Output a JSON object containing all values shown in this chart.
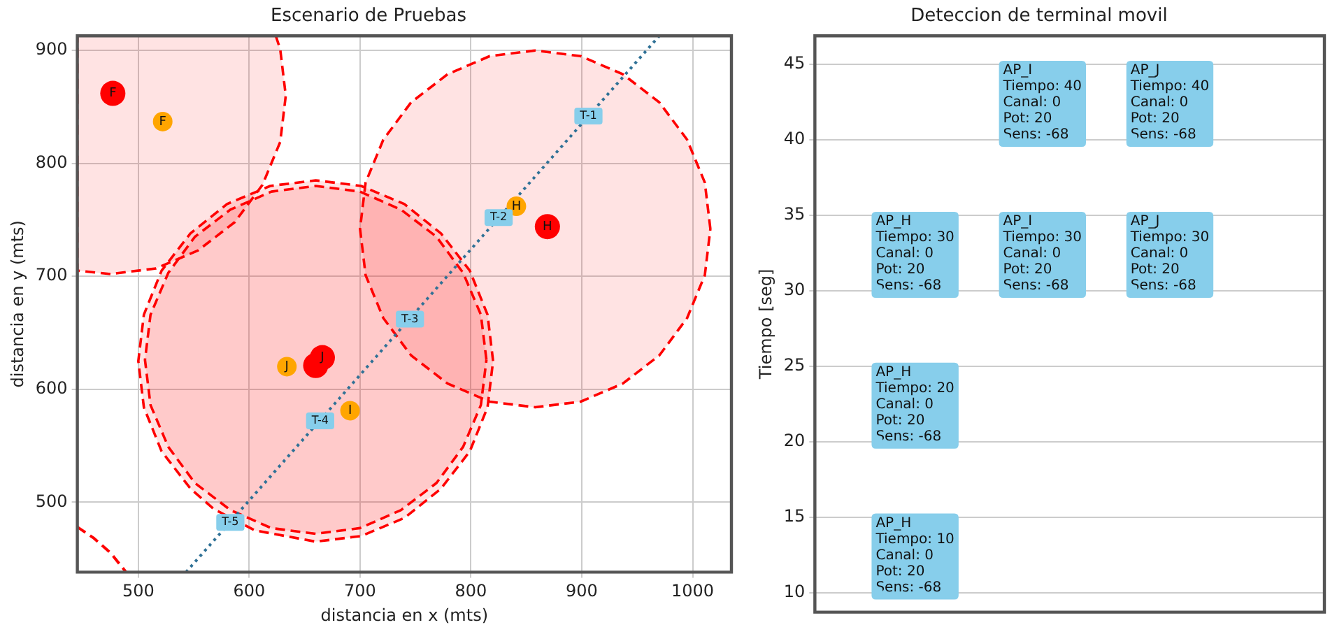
{
  "chart_data": [
    {
      "type": "scatter",
      "title": "Escenario de Pruebas",
      "xlabel": "distancia en x (mts)",
      "ylabel": "distancia en y (mts)",
      "xlim": [
        445,
        1035
      ],
      "ylim": [
        438,
        913
      ],
      "xticks": [
        500,
        600,
        700,
        800,
        900,
        1000
      ],
      "yticks": [
        500,
        600,
        700,
        800,
        900
      ],
      "grid": true,
      "legend": false,
      "marker": "circle",
      "series": [
        {
          "type": "area",
          "line_style": "dashed",
          "marker": "none",
          "color": "#ff0000",
          "x": [
            624,
            628,
            633,
            628,
            612,
            587,
            554,
            516,
            475,
            445,
            445,
            624
          ],
          "values": [
            913,
            901,
            860,
            819,
            781,
            748,
            723,
            707,
            702,
            705,
            913,
            913
          ]
        },
        {
          "type": "area",
          "line_style": "dashed",
          "marker": "none",
          "color": "#ff0000",
          "x": [
            1016,
            1011,
            995,
            970,
            937,
            899,
            858,
            817,
            779,
            746,
            721,
            705,
            700,
            705,
            721,
            746,
            779,
            817,
            858,
            899,
            937,
            970,
            995,
            1011,
            1016
          ],
          "values": [
            742,
            783,
            821,
            854,
            879,
            895,
            900,
            895,
            879,
            854,
            821,
            783,
            742,
            701,
            663,
            630,
            605,
            589,
            584,
            589,
            605,
            630,
            663,
            701,
            742
          ]
        },
        {
          "type": "area",
          "line_style": "dashed",
          "marker": "none",
          "color": "#ff0000",
          "x": [
            820,
            815,
            799,
            773,
            740,
            701,
            660,
            619,
            580,
            547,
            521,
            505,
            500,
            505,
            521,
            547,
            568,
            605,
            660,
            701,
            740,
            773,
            799,
            815,
            820
          ],
          "values": [
            625,
            666,
            705,
            738,
            764,
            780,
            785,
            780,
            764,
            738,
            705,
            666,
            625,
            584,
            545,
            512,
            494,
            475,
            465,
            470,
            486,
            512,
            545,
            584,
            625
          ]
        },
        {
          "type": "area",
          "line_style": "dashed",
          "marker": "none",
          "color": "#ff0000",
          "x": [
            814,
            809,
            793,
            769,
            737,
            700,
            660,
            620,
            583,
            551,
            527,
            511,
            506,
            511,
            527,
            551,
            583,
            620,
            660,
            700,
            737,
            769,
            793,
            809,
            814
          ],
          "values": [
            626,
            666,
            703,
            735,
            759,
            775,
            780,
            775,
            759,
            735,
            703,
            666,
            626,
            586,
            549,
            517,
            493,
            477,
            472,
            477,
            493,
            517,
            549,
            586,
            626
          ]
        },
        {
          "type": "line",
          "line_style": "dashed",
          "marker": "none",
          "color": "#ff0000",
          "x": [
            445,
            460,
            475,
            489
          ],
          "values": [
            478,
            468,
            455,
            438
          ]
        },
        {
          "type": "line",
          "line_style": "dotted",
          "marker": "none",
          "color": "#2f7196",
          "x": [
            543,
            970
          ],
          "values": [
            438,
            913
          ]
        },
        {
          "color": "#ff0000",
          "x": [
            477,
            869,
            666,
            660
          ],
          "values": [
            862,
            744,
            628,
            621
          ],
          "value_labels": [
            "F",
            "H",
            "J",
            null
          ]
        },
        {
          "color": "#ffa500",
          "x": [
            522,
            841,
            634,
            691
          ],
          "values": [
            837,
            762,
            620,
            581
          ],
          "value_labels": [
            "F",
            "H",
            "J",
            "I"
          ]
        }
      ],
      "annotations": [
        {
          "text": "T-1",
          "x": 906,
          "y": 842
        },
        {
          "text": "T-2",
          "x": 825,
          "y": 752
        },
        {
          "text": "T-3",
          "x": 745,
          "y": 662
        },
        {
          "text": "T-4",
          "x": 664,
          "y": 572
        },
        {
          "text": "T-5",
          "x": 583,
          "y": 482
        }
      ]
    },
    {
      "type": "scatter",
      "title": "Deteccion de terminal movil",
      "ylabel": "Tiempo [seg]",
      "categories": [
        null,
        null,
        null,
        null
      ],
      "ylim": [
        8.7,
        46.9
      ],
      "yticks": [
        10,
        15,
        20,
        25,
        30,
        35,
        40,
        45
      ],
      "grid": "y",
      "legend": false,
      "tick_labels": "y",
      "marker": "square",
      "series": [
        {
          "color": "#87ceeb",
          "values": [
            10,
            null,
            null,
            null
          ],
          "value_labels": [
            "AP_H\nTiempo: 10\nCanal: 0\nPot: 20\nSens: -68",
            null,
            null,
            null
          ]
        },
        {
          "color": "#87ceeb",
          "values": [
            20,
            null,
            null,
            null
          ],
          "value_labels": [
            "AP_H\nTiempo: 20\nCanal: 0\nPot: 20\nSens: -68",
            null,
            null,
            null
          ]
        },
        {
          "color": "#87ceeb",
          "values": [
            30,
            30,
            30,
            null
          ],
          "value_labels": [
            "AP_H\nTiempo: 30\nCanal: 0\nPot: 20\nSens: -68",
            "AP_I\nTiempo: 30\nCanal: 0\nPot: 20\nSens: -68",
            "AP_J\nTiempo: 30\nCanal: 0\nPot: 20\nSens: -68",
            null
          ]
        },
        {
          "color": "#87ceeb",
          "values": [
            null,
            40,
            40,
            null
          ],
          "value_labels": [
            null,
            "AP_I\nTiempo: 40\nCanal: 0\nPot: 20\nSens: -68",
            "AP_J\nTiempo: 40\nCanal: 0\nPot: 20\nSens: -68",
            null
          ]
        }
      ]
    }
  ]
}
